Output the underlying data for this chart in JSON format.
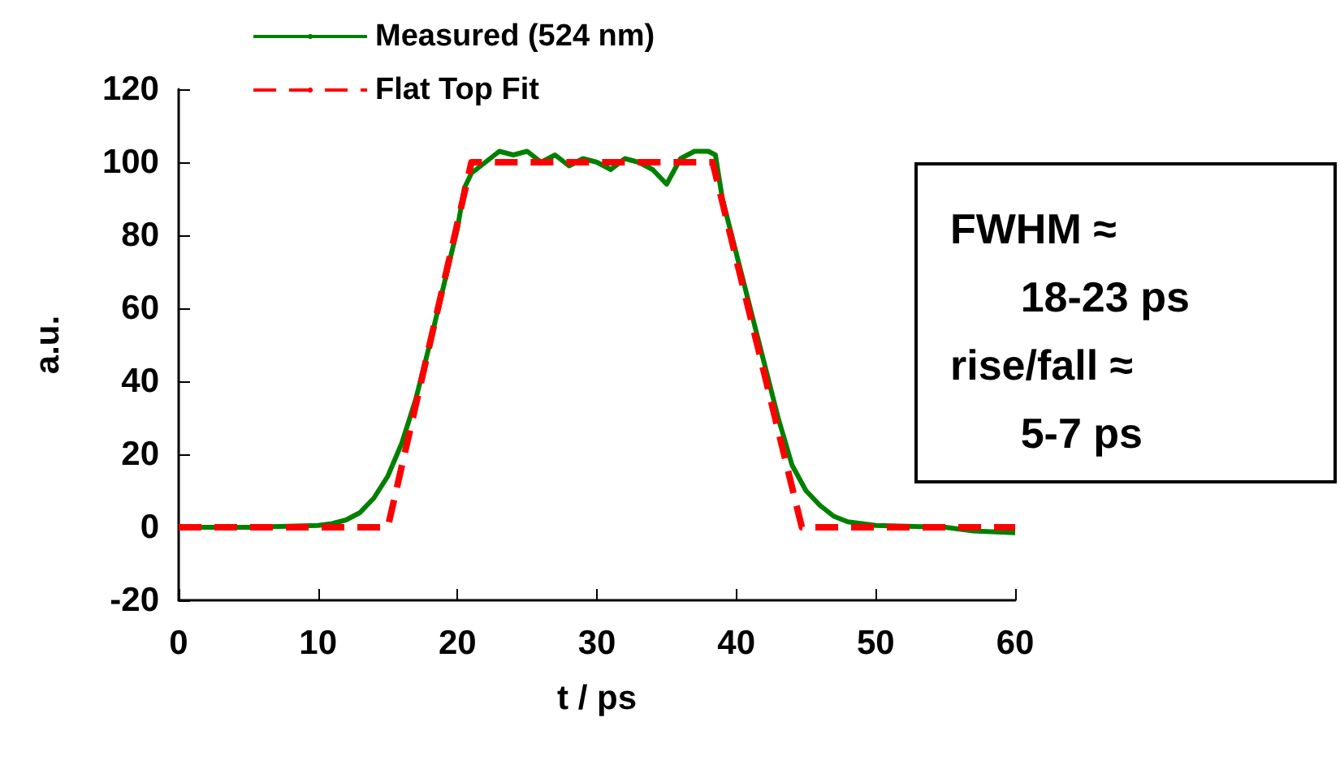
{
  "chart_data": {
    "type": "line",
    "xlabel": "t / ps",
    "ylabel": "a.u.",
    "xlim": [
      0,
      60
    ],
    "xticks": [
      0,
      10,
      20,
      30,
      40,
      50,
      60
    ],
    "ylim": [
      -20,
      120
    ],
    "yticks": [
      -20,
      0,
      20,
      40,
      60,
      80,
      100,
      120
    ],
    "grid": false,
    "legend": "top",
    "marker": "none",
    "annotations": [
      "FWHM ≈\n      18-23 ps\nrise/fall ≈\n      5-7 ps"
    ],
    "series": [
      {
        "name": "Measured (524 nm)",
        "color": "#008000",
        "line_style": "solid",
        "x": [
          0,
          5,
          10,
          11,
          12,
          13,
          14,
          15,
          16,
          17,
          18,
          19,
          20,
          20.5,
          21,
          22,
          23,
          24,
          25,
          26,
          27,
          28,
          29,
          30,
          31,
          32,
          33,
          34,
          35,
          36,
          37,
          38,
          38.5,
          39,
          40,
          41,
          42,
          43,
          44,
          45,
          46,
          47,
          48,
          50,
          55,
          57,
          60
        ],
        "values": [
          0,
          0,
          0.5,
          1,
          2,
          4,
          8,
          14,
          23,
          35,
          50,
          66,
          82,
          93,
          97,
          100,
          103,
          102,
          103,
          100,
          102,
          99,
          101,
          100,
          98,
          101,
          100,
          98,
          94,
          101,
          103,
          103,
          102,
          90,
          75,
          60,
          45,
          30,
          17,
          10,
          6,
          3,
          1.5,
          0.5,
          0,
          -1,
          -1.5
        ]
      },
      {
        "name": "Flat Top Fit",
        "color": "#ff0000",
        "line_style": "dashed",
        "x": [
          0,
          15,
          21,
          38.3,
          44.7,
          60
        ],
        "values": [
          0,
          0,
          100,
          100,
          0,
          0
        ]
      }
    ]
  }
}
